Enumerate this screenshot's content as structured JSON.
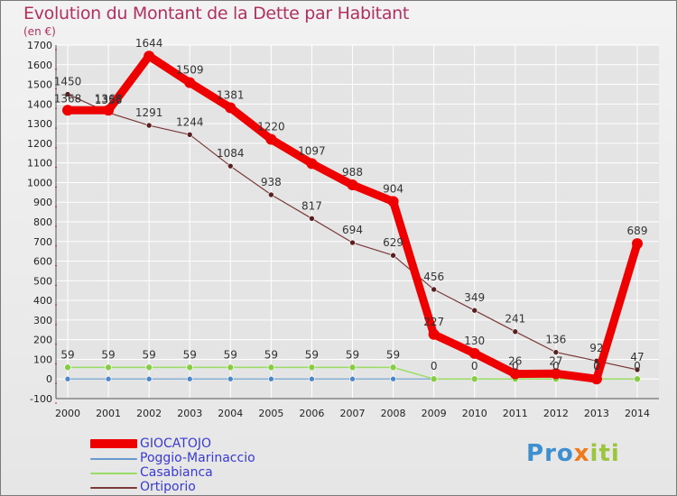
{
  "title": "Evolution du Montant de la Dette par Habitant",
  "subtitle": "(en €)",
  "brand": "Proxiti",
  "colors": {
    "title": "#b03060",
    "grid": "#ffffff",
    "axis": "#555555",
    "tick_red": "#cc2222",
    "legend_text": "#3a3ad0"
  },
  "chart_data": {
    "type": "line",
    "title": "Evolution du Montant de la Dette par Habitant",
    "subtitle": "(en €)",
    "xlabel": "",
    "ylabel": "",
    "ylim": [
      -100,
      1700
    ],
    "ytick_step": 100,
    "grid": true,
    "legend_position": "bottom-left",
    "categories": [
      "2000",
      "2001",
      "2002",
      "2003",
      "2004",
      "2005",
      "2006",
      "2007",
      "2008",
      "2009",
      "2010",
      "2011",
      "2012",
      "2013",
      "2014"
    ],
    "series": [
      {
        "name": "GIOCATOJO",
        "color": "#ee0000",
        "values": [
          1368,
          1368,
          1644,
          1509,
          1381,
          1220,
          1097,
          988,
          904,
          227,
          130,
          26,
          27,
          0,
          689
        ],
        "labels": [
          "1368",
          "1368",
          "1644",
          "1509",
          "1381",
          "1220",
          "1097",
          "988",
          "904",
          "227",
          "130",
          "26",
          "27",
          "0",
          "689"
        ]
      },
      {
        "name": "Poggio-Marinaccio",
        "color": "#6699cc",
        "values": [
          0,
          0,
          0,
          0,
          0,
          0,
          0,
          0,
          0,
          0,
          0,
          0,
          0,
          0,
          0
        ],
        "labels": []
      },
      {
        "name": "Casabianca",
        "color": "#99dd66",
        "values": [
          59,
          59,
          59,
          59,
          59,
          59,
          59,
          59,
          59,
          0,
          0,
          0,
          0,
          0,
          0
        ],
        "labels": [
          "59",
          "59",
          "59",
          "59",
          "59",
          "59",
          "59",
          "59",
          "59",
          "0",
          "0",
          "0",
          "0",
          "0",
          "0"
        ]
      },
      {
        "name": "Ortiporio",
        "color": "#7a3a3a",
        "values": [
          1450,
          1356,
          1291,
          1244,
          1084,
          938,
          817,
          694,
          629,
          456,
          349,
          241,
          136,
          92,
          47
        ],
        "labels": [
          "1450",
          "1356",
          "1291",
          "1244",
          "1084",
          "938",
          "817",
          "694",
          "629",
          "456",
          "349",
          "241",
          "136",
          "92",
          "47"
        ]
      }
    ]
  }
}
